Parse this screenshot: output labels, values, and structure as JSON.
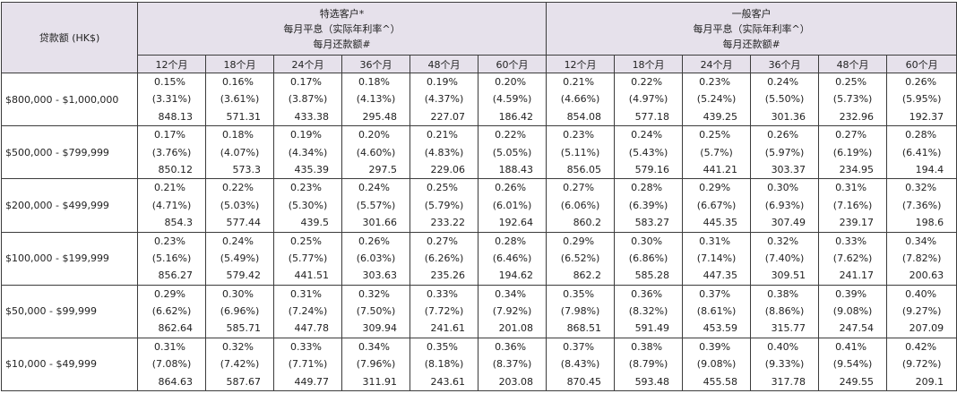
{
  "header": {
    "amount_label": "贷款额 (HK$)",
    "groups": [
      {
        "lines": [
          "特选客户*",
          "每月平息（实际年利率^）",
          "每月还款额#"
        ]
      },
      {
        "lines": [
          "一般客户",
          "每月平息（实际年利率^）",
          "每月还款额#"
        ]
      }
    ],
    "terms": [
      "12个月",
      "18个月",
      "24个月",
      "36个月",
      "48个月",
      "60个月",
      "12个月",
      "18个月",
      "24个月",
      "36个月",
      "48个月",
      "60个月"
    ]
  },
  "rows": [
    {
      "amount": "$800,000 - $1,000,000",
      "cells": [
        {
          "rate": "0.15%",
          "apr": "(3.31%)",
          "pay": "848.13"
        },
        {
          "rate": "0.16%",
          "apr": "(3.61%)",
          "pay": "571.31"
        },
        {
          "rate": "0.17%",
          "apr": "(3.87%)",
          "pay": "433.38"
        },
        {
          "rate": "0.18%",
          "apr": "(4.13%)",
          "pay": "295.48"
        },
        {
          "rate": "0.19%",
          "apr": "(4.37%)",
          "pay": "227.07"
        },
        {
          "rate": "0.20%",
          "apr": "(4.59%)",
          "pay": "186.42"
        },
        {
          "rate": "0.21%",
          "apr": "(4.66%)",
          "pay": "854.08"
        },
        {
          "rate": "0.22%",
          "apr": "(4.97%)",
          "pay": "577.18"
        },
        {
          "rate": "0.23%",
          "apr": "(5.24%)",
          "pay": "439.25"
        },
        {
          "rate": "0.24%",
          "apr": "(5.50%)",
          "pay": "301.36"
        },
        {
          "rate": "0.25%",
          "apr": "(5.73%)",
          "pay": "232.96"
        },
        {
          "rate": "0.26%",
          "apr": "(5.95%)",
          "pay": "192.37"
        }
      ]
    },
    {
      "amount": "$500,000 - $799,999",
      "cells": [
        {
          "rate": "0.17%",
          "apr": "(3.76%)",
          "pay": "850.12"
        },
        {
          "rate": "0.18%",
          "apr": "(4.07%)",
          "pay": "573.3"
        },
        {
          "rate": "0.19%",
          "apr": "(4.34%)",
          "pay": "435.39"
        },
        {
          "rate": "0.20%",
          "apr": "(4.60%)",
          "pay": "297.5"
        },
        {
          "rate": "0.21%",
          "apr": "(4.83%)",
          "pay": "229.06"
        },
        {
          "rate": "0.22%",
          "apr": "(5.05%)",
          "pay": "188.43"
        },
        {
          "rate": "0.23%",
          "apr": "(5.11%)",
          "pay": "856.05"
        },
        {
          "rate": "0.24%",
          "apr": "(5.43%)",
          "pay": "579.16"
        },
        {
          "rate": "0.25%",
          "apr": "(5.7%)",
          "pay": "441.21"
        },
        {
          "rate": "0.26%",
          "apr": "(5.97%)",
          "pay": "303.37"
        },
        {
          "rate": "0.27%",
          "apr": "(6.19%)",
          "pay": "234.95"
        },
        {
          "rate": "0.28%",
          "apr": "(6.41%)",
          "pay": "194.4"
        }
      ]
    },
    {
      "amount": "$200,000 - $499,999",
      "cells": [
        {
          "rate": "0.21%",
          "apr": "(4.71%)",
          "pay": "854.3"
        },
        {
          "rate": "0.22%",
          "apr": "(5.03%)",
          "pay": "577.44"
        },
        {
          "rate": "0.23%",
          "apr": "(5.30%)",
          "pay": "439.5"
        },
        {
          "rate": "0.24%",
          "apr": "(5.57%)",
          "pay": "301.66"
        },
        {
          "rate": "0.25%",
          "apr": "(5.79%)",
          "pay": "233.22"
        },
        {
          "rate": "0.26%",
          "apr": "(6.01%)",
          "pay": "192.64"
        },
        {
          "rate": "0.27%",
          "apr": "(6.06%)",
          "pay": "860.2"
        },
        {
          "rate": "0.28%",
          "apr": "(6.39%)",
          "pay": "583.27"
        },
        {
          "rate": "0.29%",
          "apr": "(6.67%)",
          "pay": "445.35"
        },
        {
          "rate": "0.30%",
          "apr": "(6.93%)",
          "pay": "307.49"
        },
        {
          "rate": "0.31%",
          "apr": "(7.16%)",
          "pay": "239.17"
        },
        {
          "rate": "0.32%",
          "apr": "(7.36%)",
          "pay": "198.6"
        }
      ]
    },
    {
      "amount": "$100,000 - $199,999",
      "cells": [
        {
          "rate": "0.23%",
          "apr": "(5.16%)",
          "pay": "856.27"
        },
        {
          "rate": "0.24%",
          "apr": "(5.49%)",
          "pay": "579.42"
        },
        {
          "rate": "0.25%",
          "apr": "(5.77%)",
          "pay": "441.51"
        },
        {
          "rate": "0.26%",
          "apr": "(6.03%)",
          "pay": "303.63"
        },
        {
          "rate": "0.27%",
          "apr": "(6.26%)",
          "pay": "235.26"
        },
        {
          "rate": "0.28%",
          "apr": "(6.46%)",
          "pay": "194.62"
        },
        {
          "rate": "0.29%",
          "apr": "(6.52%)",
          "pay": "862.2"
        },
        {
          "rate": "0.30%",
          "apr": "(6.86%)",
          "pay": "585.28"
        },
        {
          "rate": "0.31%",
          "apr": "(7.14%)",
          "pay": "447.35"
        },
        {
          "rate": "0.32%",
          "apr": "(7.40%)",
          "pay": "309.51"
        },
        {
          "rate": "0.33%",
          "apr": "(7.62%)",
          "pay": "241.17"
        },
        {
          "rate": "0.34%",
          "apr": "(7.82%)",
          "pay": "200.63"
        }
      ]
    },
    {
      "amount": "$50,000 - $99,999",
      "cells": [
        {
          "rate": "0.29%",
          "apr": "(6.62%)",
          "pay": "862.64"
        },
        {
          "rate": "0.30%",
          "apr": "(6.96%)",
          "pay": "585.71"
        },
        {
          "rate": "0.31%",
          "apr": "(7.24%)",
          "pay": "447.78"
        },
        {
          "rate": "0.32%",
          "apr": "(7.50%)",
          "pay": "309.94"
        },
        {
          "rate": "0.33%",
          "apr": "(7.72%)",
          "pay": "241.61"
        },
        {
          "rate": "0.34%",
          "apr": "(7.92%)",
          "pay": "201.08"
        },
        {
          "rate": "0.35%",
          "apr": "(7.98%)",
          "pay": "868.51"
        },
        {
          "rate": "0.36%",
          "apr": "(8.32%)",
          "pay": "591.49"
        },
        {
          "rate": "0.37%",
          "apr": "(8.61%)",
          "pay": "453.59"
        },
        {
          "rate": "0.38%",
          "apr": "(8.86%)",
          "pay": "315.77"
        },
        {
          "rate": "0.39%",
          "apr": "(9.08%)",
          "pay": "247.54"
        },
        {
          "rate": "0.40%",
          "apr": "(9.27%)",
          "pay": "207.09"
        }
      ]
    },
    {
      "amount": "$10,000 - $49,999",
      "cells": [
        {
          "rate": "0.31%",
          "apr": "(7.08%)",
          "pay": "864.63"
        },
        {
          "rate": "0.32%",
          "apr": "(7.42%)",
          "pay": "587.67"
        },
        {
          "rate": "0.33%",
          "apr": "(7.71%)",
          "pay": "449.77"
        },
        {
          "rate": "0.34%",
          "apr": "(7.96%)",
          "pay": "311.91"
        },
        {
          "rate": "0.35%",
          "apr": "(8.18%)",
          "pay": "243.61"
        },
        {
          "rate": "0.36%",
          "apr": "(8.37%)",
          "pay": "203.08"
        },
        {
          "rate": "0.37%",
          "apr": "(8.43%)",
          "pay": "870.45"
        },
        {
          "rate": "0.38%",
          "apr": "(8.79%)",
          "pay": "593.48"
        },
        {
          "rate": "0.39%",
          "apr": "(9.08%)",
          "pay": "455.58"
        },
        {
          "rate": "0.40%",
          "apr": "(9.33%)",
          "pay": "317.78"
        },
        {
          "rate": "0.41%",
          "apr": "(9.54%)",
          "pay": "249.55"
        },
        {
          "rate": "0.42%",
          "apr": "(9.72%)",
          "pay": "209.1"
        }
      ]
    }
  ]
}
